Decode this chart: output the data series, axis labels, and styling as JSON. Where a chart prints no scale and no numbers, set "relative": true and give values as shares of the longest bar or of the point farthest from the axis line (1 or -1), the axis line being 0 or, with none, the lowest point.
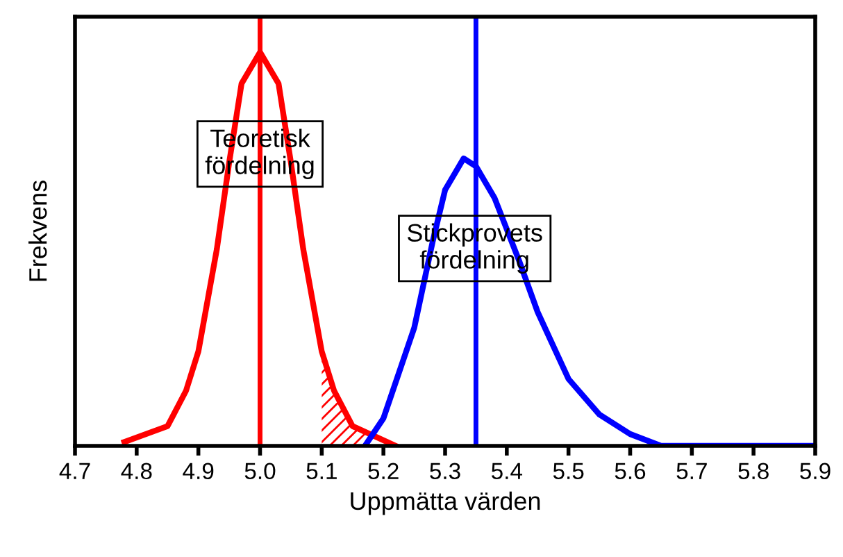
{
  "chart_data": {
    "type": "line",
    "relative": true,
    "xlabel": "Uppmätta värden",
    "ylabel": "Frekvens",
    "xlim": [
      4.7,
      5.9
    ],
    "xticks": [
      4.7,
      4.8,
      4.9,
      {
        "value": 5.0,
        "label": "5.0"
      },
      5.1,
      5.2,
      5.3,
      5.4,
      5.5,
      5.6,
      5.7,
      5.8,
      5.9
    ],
    "series": [
      {
        "color": "#ff0000",
        "x": [
          4.78,
          4.85,
          4.88,
          4.9,
          4.93,
          4.95,
          4.97,
          5.0,
          5.03,
          5.05,
          5.07,
          5.1,
          5.12,
          5.15,
          5.22
        ],
        "values": [
          0.01,
          0.05,
          0.14,
          0.24,
          0.5,
          0.72,
          0.92,
          1,
          0.92,
          0.72,
          0.5,
          0.24,
          0.14,
          0.05,
          0
        ]
      },
      {
        "color": "#0000ff",
        "x": [
          5.17,
          5.2,
          5.25,
          5.28,
          5.3,
          5.33,
          5.35,
          5.38,
          5.42,
          5.45,
          5.5,
          5.55,
          5.6,
          5.65,
          5.9
        ],
        "values": [
          0,
          0.07,
          0.3,
          0.52,
          0.65,
          0.73,
          0.71,
          0.63,
          0.47,
          0.34,
          0.17,
          0.08,
          0.03,
          0,
          0
        ]
      },
      {
        "type": "area",
        "color": "#ff0000",
        "x": [
          5.1,
          5.12,
          5.15,
          5.17
        ],
        "values": [
          0.24,
          0.14,
          0.05,
          0.03
        ]
      }
    ],
    "ref_lines": [
      {
        "axis": "x",
        "value": 5.0,
        "color": "#ff0000"
      },
      {
        "axis": "x",
        "value": 5.35,
        "color": "#0000ff"
      }
    ],
    "annotations": [
      "Teoretisk\nfördelning",
      "Stickprovets\nfördelning"
    ],
    "grid": false,
    "legend": false
  }
}
